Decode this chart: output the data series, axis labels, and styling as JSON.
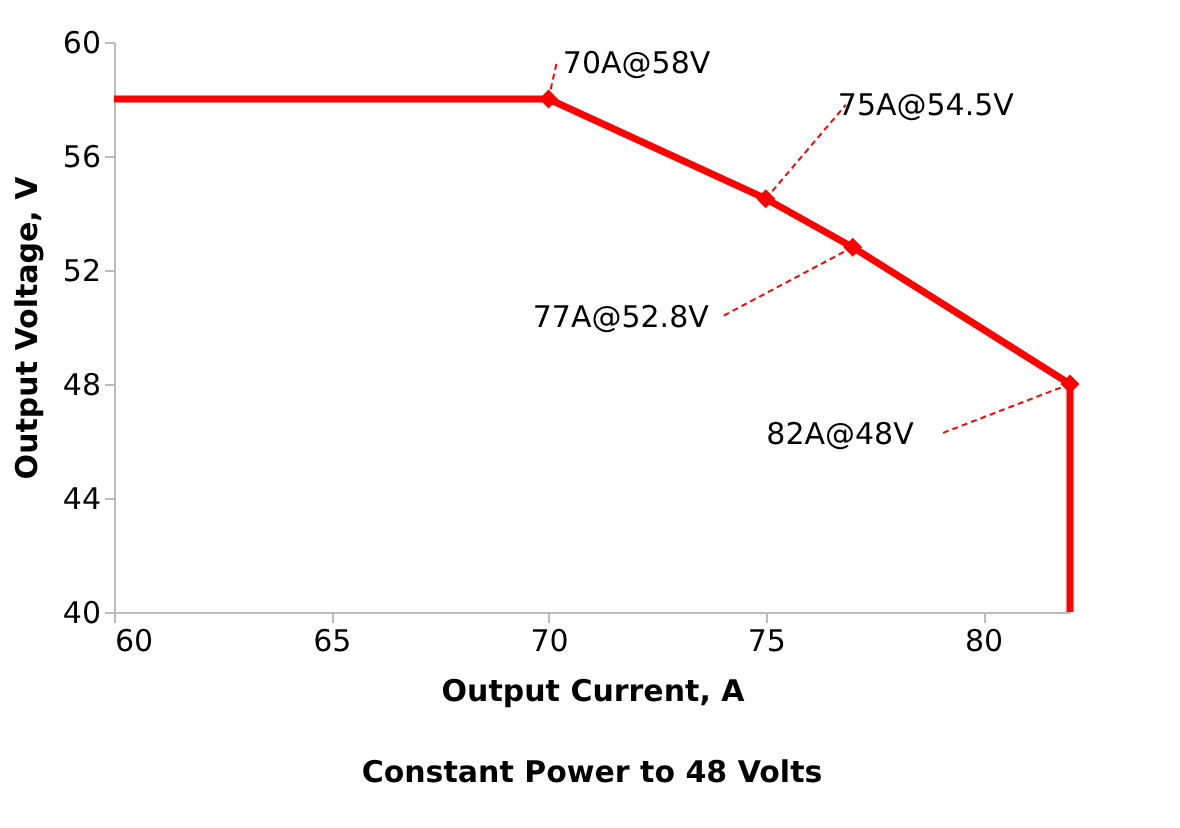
{
  "chart_data": {
    "type": "line",
    "title": "Constant Power to 48 Volts",
    "xlabel": "Output Current, A",
    "ylabel": "Output Voltage, V",
    "xlim": [
      60,
      82
    ],
    "xticks": [
      60,
      65,
      70,
      75,
      80
    ],
    "ylim": [
      40,
      60
    ],
    "yticks": [
      40,
      44,
      48,
      52,
      56,
      60
    ],
    "grid": false,
    "series": [
      {
        "color": "#ff0000",
        "x": [
          60,
          70,
          75,
          77,
          82,
          82
        ],
        "values": [
          58,
          58,
          54.5,
          52.8,
          48,
          40
        ],
        "marker": "none",
        "line_style": "solid"
      },
      {
        "type": "scatter",
        "color": "#ff0000",
        "x": [
          70,
          75,
          77,
          82
        ],
        "values": [
          58,
          54.5,
          52.8,
          48
        ],
        "marker": "diamond"
      }
    ],
    "annotations": [
      {
        "text": "70A@58V",
        "x": 70,
        "y": 58
      },
      {
        "text": "75A@54.5V",
        "x": 75,
        "y": 54.5
      },
      {
        "text": "77A@52.8V",
        "x": 77,
        "y": 52.8
      },
      {
        "text": "82A@48V",
        "x": 82,
        "y": 48
      }
    ]
  }
}
